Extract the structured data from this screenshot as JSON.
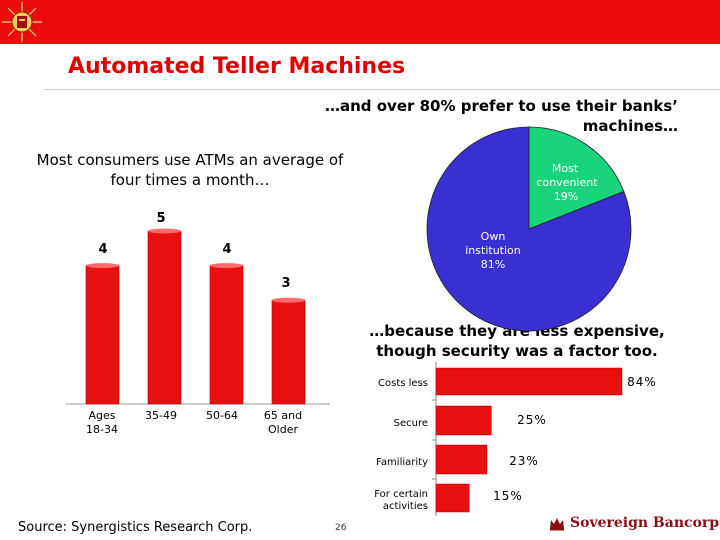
{
  "slide": {
    "title": "Automated Teller Machines",
    "subtitle_right": "…and over 80% prefer to use their banks’ machines…",
    "subtitle_left": "Most consumers use ATMs an average of four times a month…",
    "subtitle_below": "…because they are less expensive, though security was a factor too.",
    "source": "Source: Synergistics Research Corp.",
    "page_number": "26",
    "brand_name": "Sovereign Bancorp",
    "colors": {
      "topbar": "#ec0c0c",
      "title": "#e00000",
      "bar": "#e81010",
      "pie_main": "#3a2fd0",
      "pie_slice": "#19d47a",
      "brand": "#8a0f12"
    }
  },
  "chart_data": [
    {
      "type": "bar",
      "categories": [
        "Ages 18-34",
        "35-49",
        "50-64",
        "65 and Older"
      ],
      "values": [
        4,
        5,
        4,
        3
      ],
      "data_labels": [
        "4",
        "5",
        "4",
        "3"
      ],
      "ylim": [
        0,
        5
      ],
      "title": "",
      "xlabel": "",
      "ylabel": "",
      "grid": false,
      "legend": "none"
    },
    {
      "type": "pie",
      "slices": [
        {
          "label": "Most convenient",
          "value": 19,
          "value_label": "19%"
        },
        {
          "label": "Own institution",
          "value": 81,
          "value_label": "81%"
        }
      ],
      "title": "",
      "legend": "none"
    },
    {
      "type": "bar",
      "orientation": "horizontal",
      "categories": [
        "Costs less",
        "Secure",
        "Familiarity",
        "For certain activities"
      ],
      "values": [
        84,
        25,
        23,
        15
      ],
      "data_labels": [
        "84%",
        "25%",
        "23%",
        "15%"
      ],
      "xlim": [
        0,
        100
      ],
      "title": "",
      "xlabel": "",
      "ylabel": "",
      "grid": false,
      "legend": "none"
    }
  ]
}
